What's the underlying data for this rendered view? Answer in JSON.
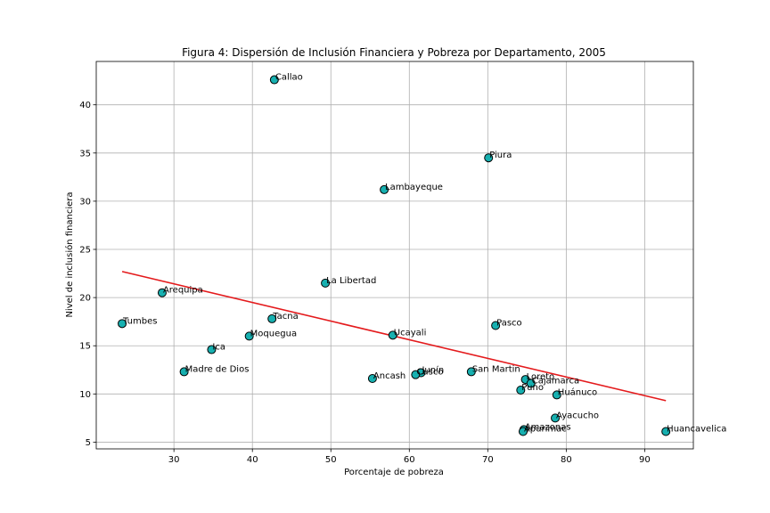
{
  "chart_data": {
    "type": "scatter",
    "title": "Figura 4: Dispersión de Inclusión Financiera y Pobreza por Departamento, 2005",
    "xlabel": "Porcentaje de pobreza",
    "ylabel": "Nivel de inclusión financiera",
    "xlim": [
      20.1,
      96.2
    ],
    "ylim": [
      4.3,
      44.5
    ],
    "xticks": [
      30,
      40,
      50,
      60,
      70,
      80,
      90
    ],
    "yticks": [
      5,
      10,
      15,
      20,
      25,
      30,
      35,
      40
    ],
    "grid": true,
    "colors": {
      "point_fill": "#17b0b0",
      "point_edge": "#000000",
      "trendline": "#e41a1c",
      "grid": "#b0b0b0"
    },
    "points": [
      {
        "label": "Callao",
        "x": 42.8,
        "y": 42.6
      },
      {
        "label": "Piura",
        "x": 70.1,
        "y": 34.5
      },
      {
        "label": "Lambayeque",
        "x": 56.8,
        "y": 31.2
      },
      {
        "label": "La Libertad",
        "x": 49.3,
        "y": 21.5
      },
      {
        "label": "Arequipa",
        "x": 28.5,
        "y": 20.5
      },
      {
        "label": "Tacna",
        "x": 42.5,
        "y": 17.8
      },
      {
        "label": "Tumbes",
        "x": 23.4,
        "y": 17.3
      },
      {
        "label": "Pasco",
        "x": 71.0,
        "y": 17.1
      },
      {
        "label": "Ucayali",
        "x": 57.9,
        "y": 16.1
      },
      {
        "label": "Moquegua",
        "x": 39.6,
        "y": 16.0
      },
      {
        "label": "Ica",
        "x": 34.8,
        "y": 14.6
      },
      {
        "label": "Madre de Dios",
        "x": 31.3,
        "y": 12.3
      },
      {
        "label": "San Martin",
        "x": 67.9,
        "y": 12.3
      },
      {
        "label": "Junín",
        "x": 61.5,
        "y": 12.2
      },
      {
        "label": "Cusco",
        "x": 60.8,
        "y": 12.0
      },
      {
        "label": "Ancash",
        "x": 55.3,
        "y": 11.6
      },
      {
        "label": "Loreto",
        "x": 74.8,
        "y": 11.5
      },
      {
        "label": "Cajamarca",
        "x": 75.5,
        "y": 11.1
      },
      {
        "label": "Puno",
        "x": 74.2,
        "y": 10.4
      },
      {
        "label": "Huánuco",
        "x": 78.8,
        "y": 9.9
      },
      {
        "label": "Ayacucho",
        "x": 78.6,
        "y": 7.5
      },
      {
        "label": "Amazonas",
        "x": 74.6,
        "y": 6.3
      },
      {
        "label": "Apurimac",
        "x": 74.5,
        "y": 6.1
      },
      {
        "label": "Huancavelica",
        "x": 92.7,
        "y": 6.1
      }
    ],
    "trendline": {
      "x": [
        23.4,
        92.7
      ],
      "y": [
        22.7,
        9.3
      ]
    }
  }
}
